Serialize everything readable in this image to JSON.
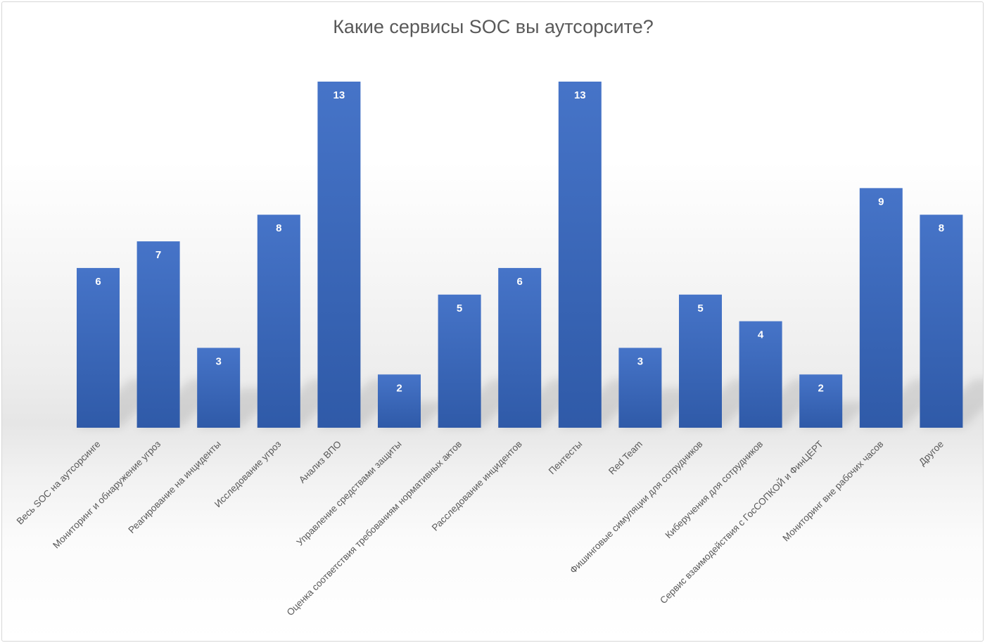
{
  "chart_data": {
    "type": "bar",
    "title": "Какие сервисы SOC вы аутсорсите?",
    "xlabel": "",
    "ylabel": "",
    "ylim": [
      0,
      13
    ],
    "grid": false,
    "legend": "none",
    "bar_color": "#4472c4",
    "categories": [
      "Весь SOC на аутсорсинге",
      "Мониторинг и обнаружение угроз",
      "Реагирование на инциденты",
      "Исследование угроз",
      "Анализ ВПО",
      "Управление средствами защиты",
      "Оценка соответствия требованиям нормативных актов",
      "Расследование инцидентов",
      "Пентесты",
      "Red Team",
      "Фишинговые симуляции для сотрудников",
      "Киберучения для сотрудников",
      "Сервис взаимодействия с ГосСОПКОЙ и ФинЦЕРТ",
      "Мониторинг вне рабочих часов",
      "Другое"
    ],
    "values": [
      6,
      7,
      3,
      8,
      13,
      2,
      5,
      6,
      13,
      3,
      5,
      4,
      2,
      9,
      8
    ]
  }
}
